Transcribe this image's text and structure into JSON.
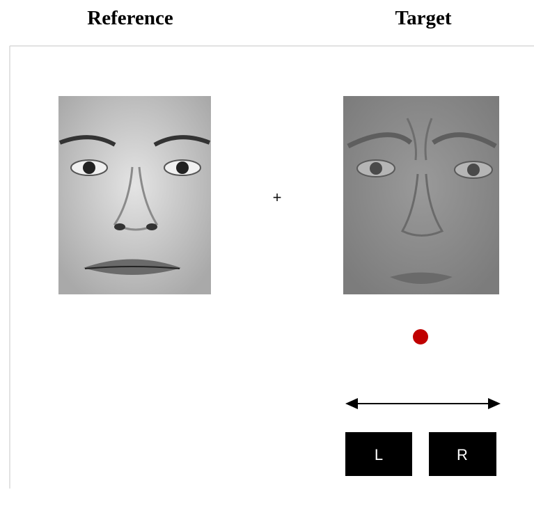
{
  "header": {
    "reference_label": "Reference",
    "target_label": "Target"
  },
  "fixation": "+",
  "response_keys": [
    "L",
    "R"
  ]
}
